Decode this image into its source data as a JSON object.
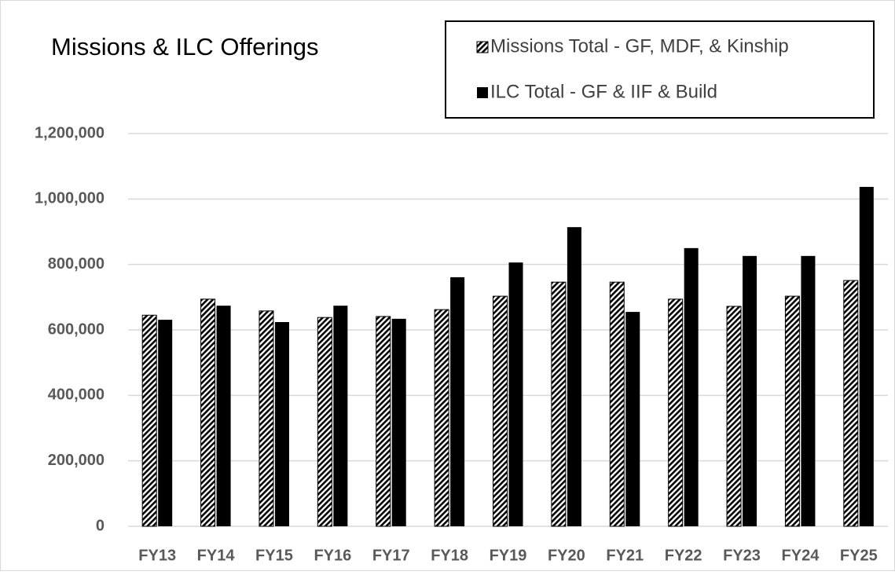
{
  "chart_data": {
    "type": "bar",
    "title": "Missions & ILC Offerings",
    "categories": [
      "FY13",
      "FY14",
      "FY15",
      "FY16",
      "FY17",
      "FY18",
      "FY19",
      "FY20",
      "FY21",
      "FY22",
      "FY23",
      "FY24",
      "FY25"
    ],
    "series": [
      {
        "name": "Missions Total - GF, MDF, & Kinship",
        "color": "#000000",
        "pattern": "diagonal-stripes",
        "values": [
          645000,
          694000,
          658000,
          638000,
          641000,
          662000,
          703000,
          746000,
          746000,
          694000,
          672000,
          703000,
          751000
        ]
      },
      {
        "name": "ILC Total - GF & IIF & Build",
        "color": "#000000",
        "pattern": "solid",
        "values": [
          631000,
          674000,
          624000,
          674000,
          634000,
          761000,
          806000,
          914000,
          655000,
          850000,
          826000,
          826000,
          1037000
        ]
      }
    ],
    "ylim": [
      0,
      1200000
    ],
    "yticks": [
      0,
      {
        "value": 200000,
        "label": "200,000"
      },
      {
        "value": 400000,
        "label": "400,000"
      },
      {
        "value": 600000,
        "label": "600,000"
      },
      {
        "value": 800000,
        "label": "800,000"
      },
      {
        "value": 1000000,
        "label": "1,000,000"
      },
      {
        "value": 1200000,
        "label": "1,200,000"
      }
    ],
    "grid": true,
    "legend": "top-right"
  }
}
